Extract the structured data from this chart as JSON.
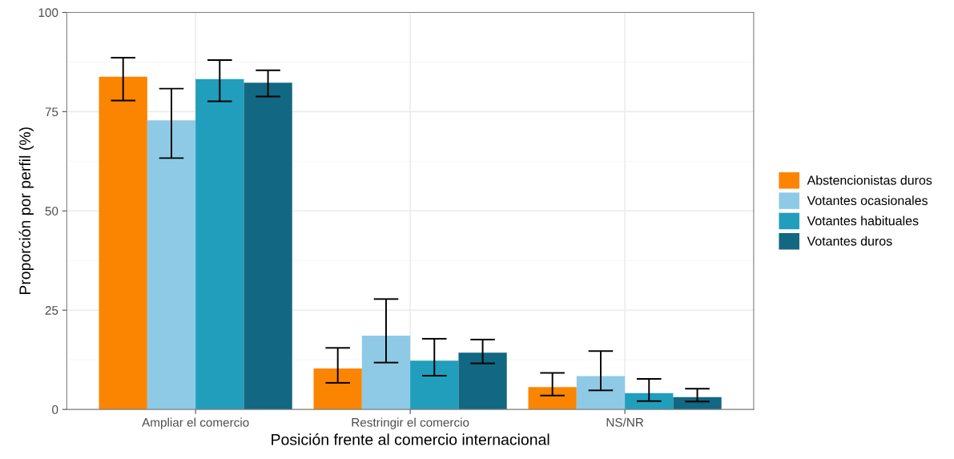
{
  "chart_data": {
    "type": "bar",
    "xlabel": "Posición frente al comercio internacional",
    "ylabel": "Proporción por perfil (%)",
    "categories": [
      "Ampliar el comercio",
      "Restringir el comercio",
      "NS/NR"
    ],
    "series": [
      {
        "name": "Abstencionistas duros",
        "color": "#fb8500",
        "values": [
          83.8,
          10.3,
          5.6
        ],
        "errors": [
          [
            77.8,
            88.6
          ],
          [
            6.7,
            15.5
          ],
          [
            3.5,
            9.2
          ]
        ]
      },
      {
        "name": "Votantes ocasionales",
        "color": "#8ecae6",
        "values": [
          72.8,
          18.6,
          8.4
        ],
        "errors": [
          [
            63.3,
            80.8
          ],
          [
            11.8,
            27.8
          ],
          [
            4.8,
            14.7
          ]
        ]
      },
      {
        "name": "Votantes habituales",
        "color": "#219ebc",
        "values": [
          83.2,
          12.3,
          4.1
        ],
        "errors": [
          [
            77.6,
            88.0
          ],
          [
            8.5,
            17.8
          ],
          [
            2.1,
            7.7
          ]
        ]
      },
      {
        "name": "Votantes duros",
        "color": "#126782",
        "values": [
          82.3,
          14.3,
          3.1
        ],
        "errors": [
          [
            78.8,
            85.4
          ],
          [
            11.6,
            17.6
          ],
          [
            2.0,
            5.2
          ]
        ]
      }
    ],
    "ylim": [
      0,
      100
    ],
    "yticks": [
      0,
      25,
      50,
      75,
      100
    ],
    "grid": true,
    "legend": "right"
  }
}
